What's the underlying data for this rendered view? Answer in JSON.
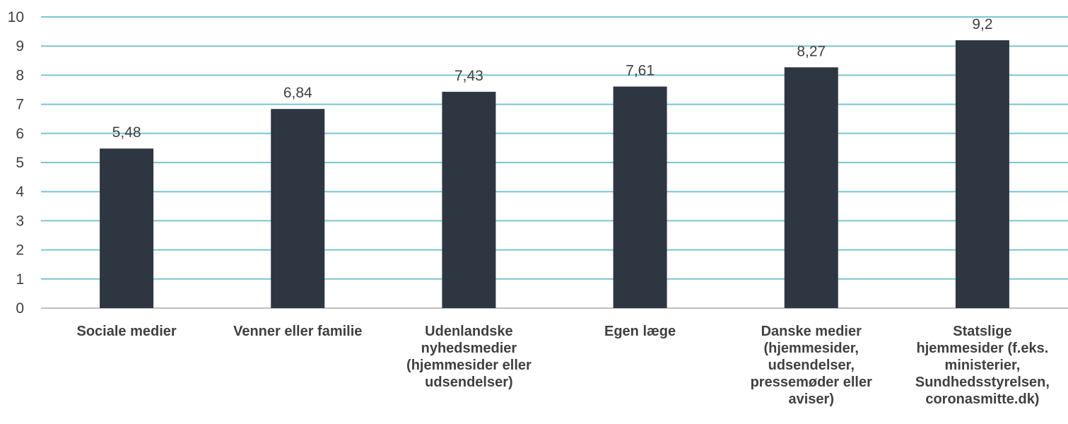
{
  "chart_data": {
    "type": "bar",
    "categories": [
      [
        "Sociale medier"
      ],
      [
        "Venner eller familie"
      ],
      [
        "Udenlandske",
        "nyhedsmedier",
        "(hjemmesider eller",
        "udsendelser)"
      ],
      [
        "Egen læge"
      ],
      [
        "Danske medier",
        "(hjemmesider,",
        "udsendelser,",
        "pressemøder eller",
        "aviser)"
      ],
      [
        "Statslige",
        "hjemmesider (f.eks.",
        "ministerier,",
        "Sundhedsstyrelsen,",
        "coronasmitte.dk)"
      ]
    ],
    "values": [
      5.48,
      6.84,
      7.43,
      7.61,
      8.27,
      9.2
    ],
    "value_labels": [
      "5,48",
      "6,84",
      "7,43",
      "7,61",
      "8,27",
      "9,2"
    ],
    "yticks": [
      "0",
      "1",
      "2",
      "3",
      "4",
      "5",
      "6",
      "7",
      "8",
      "9",
      "10"
    ],
    "ylim": [
      0,
      10
    ],
    "grid": true,
    "colors": {
      "bar": "#2e3641",
      "grid": "#79c6cf",
      "text": "#404040"
    }
  }
}
